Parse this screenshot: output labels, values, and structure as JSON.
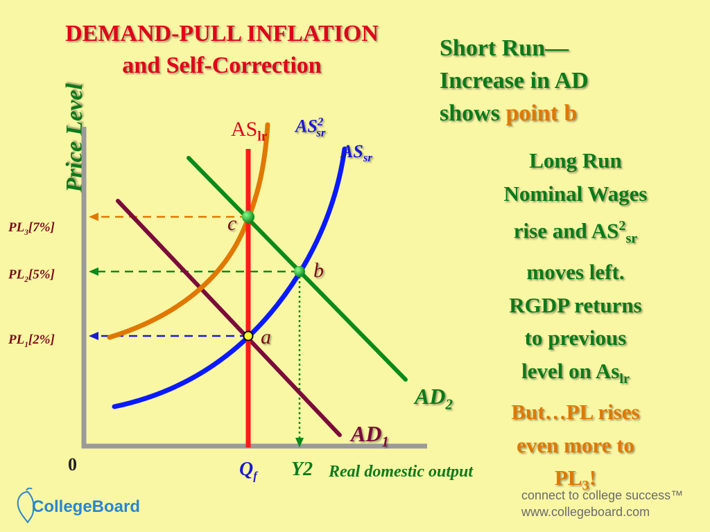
{
  "title": {
    "line1": "DEMAND-PULL INFLATION",
    "line2": "and Self-Correction"
  },
  "short_run": {
    "line1": "Short Run—",
    "line2": "Increase in AD",
    "line3_prefix": "shows ",
    "line3_highlight": "point b"
  },
  "long_run": {
    "line1": "Long Run",
    "line2": "Nominal Wages",
    "line3_prefix": "rise and AS",
    "line3_sup": "2",
    "line3_sub": "sr",
    "line4": "moves left.",
    "line5": "RGDP returns",
    "line6": "to previous",
    "line7_prefix": "level on As",
    "line7_sub": "lr",
    "line8": "But…PL rises",
    "line9": "even more to",
    "line10_prefix": "PL",
    "line10_sub": "3",
    "line10_suffix": "!"
  },
  "axes": {
    "y_label": "Price Level",
    "x_label": "Real domestic output",
    "origin": "0",
    "qf_main": "Q",
    "qf_sub": "f",
    "y2": "Y2"
  },
  "price_levels": {
    "pl3": {
      "prefix": "PL",
      "sub": "3",
      "suffix": "[7%]"
    },
    "pl2": {
      "prefix": "PL",
      "sub": "2",
      "suffix": "[5%]"
    },
    "pl1": {
      "prefix": "PL",
      "sub": "1",
      "suffix": "[2%]"
    }
  },
  "curves": {
    "as_lr": {
      "main": "AS",
      "sub": "lr"
    },
    "as2_sr": {
      "main": "AS",
      "sup": "2",
      "sub": "sr"
    },
    "as_sr": {
      "main": "AS",
      "sub": "sr"
    },
    "ad2": {
      "main": "AD",
      "sub": "2"
    },
    "ad1": {
      "main": "AD",
      "sub": "1"
    }
  },
  "points": {
    "a": "a",
    "b": "b",
    "c": "c"
  },
  "footer": {
    "brand": "CollegeBoard",
    "tagline1": "connect to college success™",
    "tagline2": "www.collegeboard.com"
  },
  "colors": {
    "background": "#f9f7a4",
    "title": "#e0001b",
    "text_green": "#0a7a1a",
    "highlight_orange": "#e07800",
    "as_lr": "#ff1a1a",
    "as_sr": "#0a1aff",
    "as2_sr": "#e07800",
    "ad1": "#7a0b3a",
    "ad2": "#0a8a1a"
  }
}
